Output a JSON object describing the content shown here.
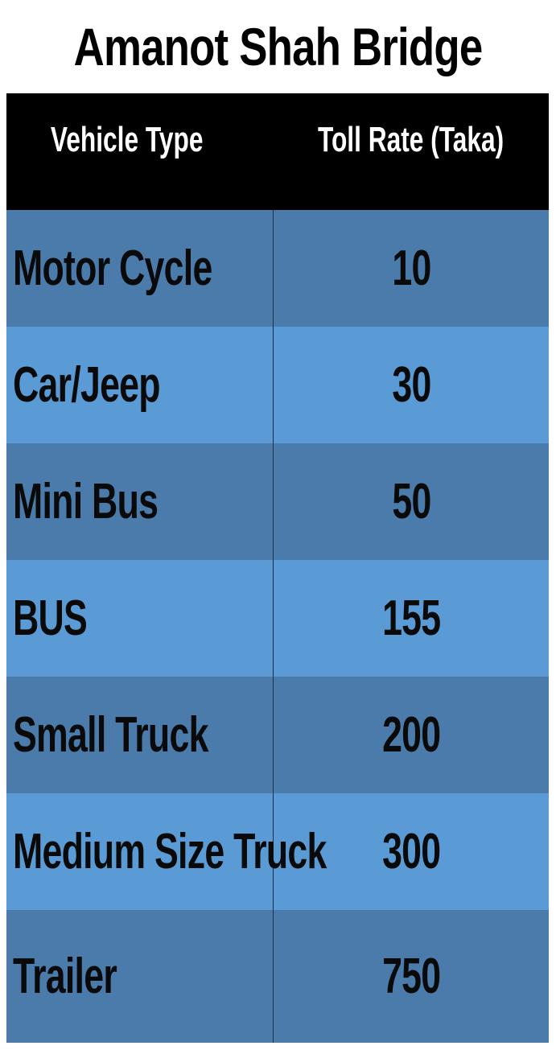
{
  "title": "Amanot Shah Bridge",
  "table": {
    "headers": {
      "vehicle_type": "Vehicle Type",
      "toll_rate": "Toll Rate (Taka)"
    },
    "rows": [
      {
        "vehicle_type": "Motor Cycle",
        "toll_rate": "10"
      },
      {
        "vehicle_type": "Car/Jeep",
        "toll_rate": "30"
      },
      {
        "vehicle_type": "Mini Bus",
        "toll_rate": "50"
      },
      {
        "vehicle_type": "BUS",
        "toll_rate": "155"
      },
      {
        "vehicle_type": "Small Truck",
        "toll_rate": "200"
      },
      {
        "vehicle_type": "Medium Size Truck",
        "toll_rate": "300"
      },
      {
        "vehicle_type": "Trailer",
        "toll_rate": "750"
      }
    ]
  },
  "colors": {
    "header_bg": "#000000",
    "header_text": "#ffffff",
    "row_dark": "#4a7bab",
    "row_light": "#5b9bd5"
  }
}
